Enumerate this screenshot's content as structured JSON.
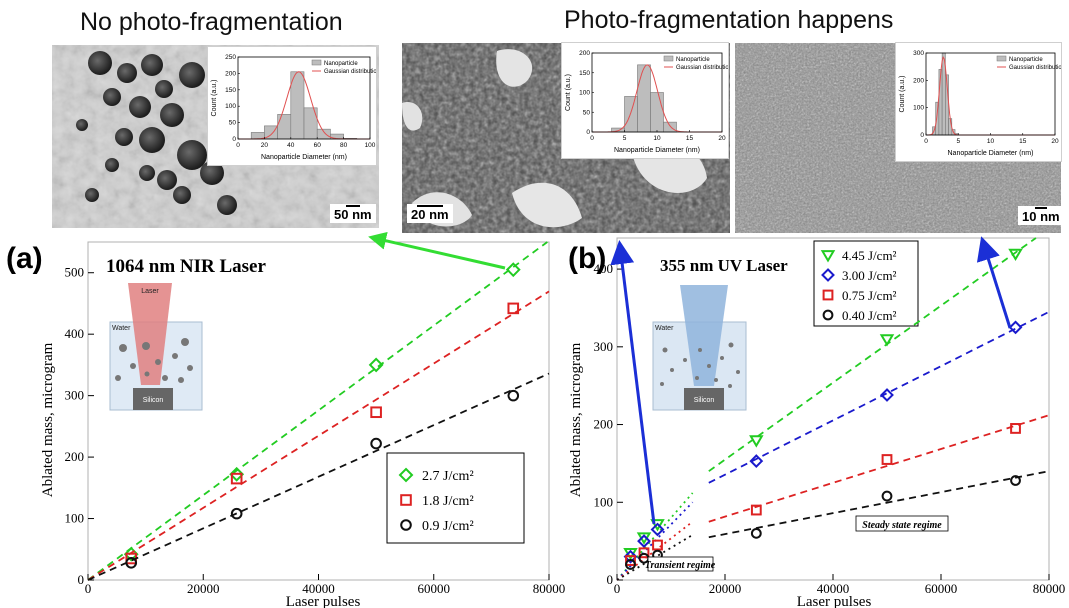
{
  "headings": {
    "left": "No photo-fragmentation",
    "right": "Photo-fragmentation happens"
  },
  "tem_images": [
    {
      "scale_bar": "50 nm"
    },
    {
      "scale_bar": "20 nm"
    },
    {
      "scale_bar": "10 nm"
    }
  ],
  "histograms": [
    {
      "legend_bar": "Nanoparticle",
      "legend_line": "Gaussian distribution",
      "xlabel": "Nanoparticle Diameter (nm)",
      "ylabel": "Count (a.u.)",
      "xlim": [
        0,
        100
      ],
      "ylim": [
        0,
        250
      ],
      "xticks": [
        0,
        20,
        40,
        60,
        80,
        100
      ],
      "yticks": [
        0,
        50,
        100,
        150,
        200,
        250
      ],
      "bin_width": 10,
      "bin_starts": [
        10,
        20,
        30,
        40,
        50,
        60,
        70,
        80
      ],
      "counts": [
        20,
        40,
        75,
        205,
        95,
        30,
        15,
        2
      ],
      "gauss": {
        "mu": 46,
        "sigma": 9,
        "amp": 205
      }
    },
    {
      "legend_bar": "Nanoparticle",
      "legend_line": "Gaussian distribution",
      "xlabel": "Nanoparticle Diameter (nm)",
      "ylabel": "Count (a.u.)",
      "xlim": [
        0,
        20
      ],
      "ylim": [
        0,
        200
      ],
      "xticks": [
        0,
        5,
        10,
        15,
        20
      ],
      "yticks": [
        0,
        50,
        100,
        150,
        200
      ],
      "bin_width": 2,
      "bin_starts": [
        3,
        5,
        7,
        9,
        11
      ],
      "counts": [
        10,
        90,
        170,
        100,
        25
      ],
      "gauss": {
        "mu": 8.5,
        "sigma": 1.6,
        "amp": 170
      }
    },
    {
      "legend_bar": "Nanoparticle",
      "legend_line": "Gaussian distribution",
      "xlabel": "Nanoparticle Diameter (nm)",
      "ylabel": "Count (a.u.)",
      "xlim": [
        0,
        20
      ],
      "ylim": [
        0,
        300
      ],
      "xticks": [
        0,
        5,
        10,
        15,
        20
      ],
      "yticks": [
        0,
        100,
        200,
        300
      ],
      "bin_width": 0.5,
      "bin_starts": [
        1,
        1.5,
        2,
        2.5,
        3,
        3.5,
        4,
        4.5
      ],
      "counts": [
        30,
        120,
        240,
        300,
        220,
        60,
        20,
        5
      ],
      "gauss": {
        "mu": 2.7,
        "sigma": 0.6,
        "amp": 285
      }
    }
  ],
  "chart_data": [
    {
      "type": "scatter",
      "panel_label": "(a)",
      "title": "1064 nm NIR Laser",
      "xlabel": "Laser pulses",
      "ylabel": "Ablated mass, microgram",
      "xlim": [
        0,
        80000
      ],
      "ylim": [
        0,
        550
      ],
      "xticks": [
        0,
        20000,
        40000,
        60000,
        80000
      ],
      "yticks": [
        0,
        100,
        200,
        300,
        400,
        500
      ],
      "legend_position": "lower-right",
      "schematic": {
        "laser": "Laser",
        "water": "Water",
        "substrate": "Silicon"
      },
      "series": [
        {
          "name": "2.7 J/cm²",
          "marker": "diamond",
          "color": "#22cc22",
          "x": [
            7500,
            25800,
            50000,
            73800
          ],
          "y": [
            42,
            172,
            350,
            505
          ],
          "fit_slope": 0.0069
        },
        {
          "name": "1.8 J/cm²",
          "marker": "square",
          "color": "#dd2222",
          "x": [
            7500,
            25800,
            50000,
            73800
          ],
          "y": [
            35,
            165,
            273,
            442
          ],
          "fit_slope": 0.00587
        },
        {
          "name": "0.9 J/cm²",
          "marker": "circle",
          "color": "#111111",
          "x": [
            7500,
            25800,
            50000,
            73800
          ],
          "y": [
            28,
            108,
            222,
            300
          ],
          "fit_slope": 0.0042
        }
      ]
    },
    {
      "type": "scatter",
      "panel_label": "(b)",
      "title": "355 nm UV Laser",
      "xlabel": "Laser pulses",
      "ylabel": "Ablated mass, microgram",
      "xlim": [
        0,
        80000
      ],
      "ylim": [
        0,
        440
      ],
      "xticks": [
        0,
        20000,
        40000,
        60000,
        80000
      ],
      "yticks": [
        0,
        100,
        200,
        300,
        400
      ],
      "legend_position": "top-left",
      "schematic": {
        "water": "Water",
        "substrate": "Silicon"
      },
      "annotations": [
        "Transient regime",
        "Steady state regime"
      ],
      "series": [
        {
          "name": "4.45 J/cm²",
          "marker": "triangle-down",
          "color": "#22cc22",
          "x": [
            2500,
            5000,
            7500,
            25800,
            50000,
            73800
          ],
          "y": [
            35,
            55,
            72,
            180,
            310,
            420
          ],
          "transient_fit": [
            [
              0,
              0
            ],
            [
              14000,
              112
            ]
          ],
          "steady_fit": [
            [
              17000,
              140
            ],
            [
              80000,
              452
            ]
          ]
        },
        {
          "name": "3.00 J/cm²",
          "marker": "diamond",
          "color": "#1a1acc",
          "x": [
            2500,
            5000,
            7500,
            25800,
            50000,
            73800
          ],
          "y": [
            30,
            50,
            65,
            153,
            238,
            325
          ],
          "transient_fit": [
            [
              0,
              0
            ],
            [
              14000,
              100
            ]
          ],
          "steady_fit": [
            [
              17000,
              125
            ],
            [
              80000,
              345
            ]
          ]
        },
        {
          "name": "0.75 J/cm²",
          "marker": "square",
          "color": "#dd2222",
          "x": [
            2500,
            5000,
            7500,
            25800,
            50000,
            73800
          ],
          "y": [
            25,
            35,
            45,
            90,
            155,
            195
          ],
          "transient_fit": [
            [
              0,
              0
            ],
            [
              14000,
              75
            ]
          ],
          "steady_fit": [
            [
              17000,
              75
            ],
            [
              80000,
              212
            ]
          ]
        },
        {
          "name": "0.40 J/cm²",
          "marker": "circle",
          "color": "#111111",
          "x": [
            2500,
            5000,
            7500,
            25800,
            50000,
            73800
          ],
          "y": [
            20,
            28,
            32,
            60,
            108,
            128
          ],
          "transient_fit": [
            [
              0,
              0
            ],
            [
              14000,
              58
            ]
          ],
          "steady_fit": [
            [
              17000,
              55
            ],
            [
              80000,
              140
            ]
          ]
        }
      ]
    }
  ],
  "colors": {
    "green": "#22cc22",
    "red": "#dd2222",
    "black": "#111111",
    "blue": "#1a1acc",
    "arrow_blue": "#1b2fd6",
    "arrow_green": "#33dd33"
  }
}
